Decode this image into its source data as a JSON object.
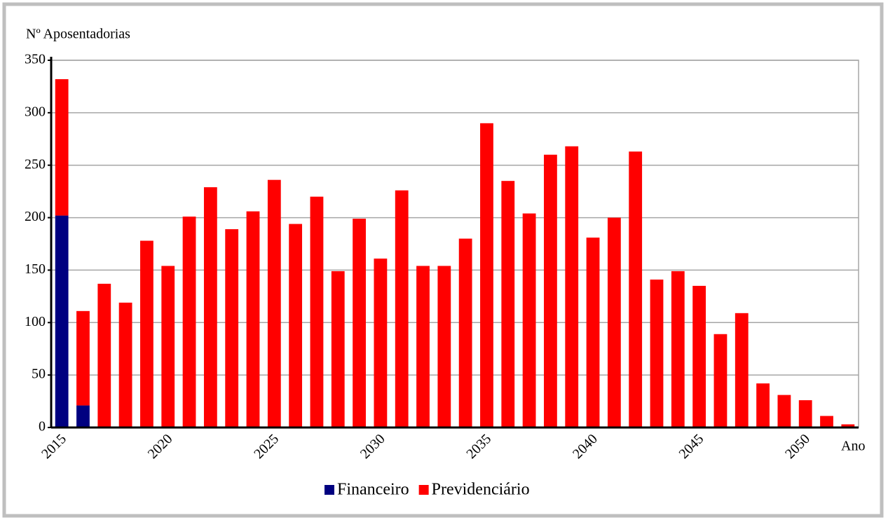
{
  "chart_data": {
    "type": "stacked_bar",
    "y_label": "Nº Aposentadorias",
    "x_label": "Ano",
    "categories": [
      "2015",
      null,
      null,
      null,
      null,
      "2020",
      null,
      null,
      null,
      null,
      "2025",
      null,
      null,
      null,
      null,
      "2030",
      null,
      null,
      null,
      null,
      "2035",
      null,
      null,
      null,
      null,
      "2040",
      null,
      null,
      null,
      null,
      "2045",
      null,
      null,
      null,
      null,
      "2050",
      null,
      null
    ],
    "series": [
      {
        "name": "Financeiro",
        "color": "#000080",
        "values": [
          202,
          21,
          0,
          0,
          0,
          0,
          0,
          0,
          0,
          0,
          0,
          0,
          0,
          0,
          0,
          0,
          0,
          0,
          0,
          0,
          0,
          0,
          0,
          0,
          0,
          0,
          0,
          0,
          0,
          0,
          0,
          0,
          0,
          0,
          0,
          0,
          0,
          0
        ]
      },
      {
        "name": "Previdenciário",
        "color": "#ff0000",
        "values": [
          130,
          90,
          137,
          119,
          178,
          154,
          201,
          229,
          189,
          206,
          236,
          194,
          220,
          149,
          199,
          161,
          226,
          154,
          154,
          180,
          290,
          235,
          204,
          260,
          268,
          181,
          200,
          263,
          141,
          149,
          135,
          89,
          109,
          42,
          31,
          26,
          11,
          3
        ]
      }
    ],
    "ylim": [
      0,
      350
    ],
    "yticks": [
      0,
      50,
      100,
      150,
      200,
      250,
      300,
      350
    ],
    "grid": true
  }
}
